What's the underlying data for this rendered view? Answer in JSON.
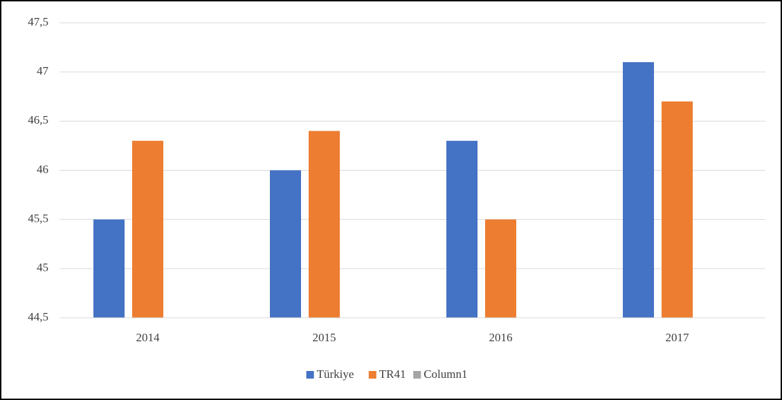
{
  "chart_data": {
    "type": "bar",
    "categories": [
      "2014",
      "2015",
      "2016",
      "2017"
    ],
    "series": [
      {
        "name": "Türkiye",
        "color": "#4472c4",
        "values": [
          45.5,
          46.0,
          46.3,
          47.1
        ]
      },
      {
        "name": "TR41",
        "color": "#ed7d31",
        "values": [
          46.3,
          46.4,
          45.5,
          46.7
        ]
      },
      {
        "name": "Column1",
        "color": "#a5a5a5",
        "values": [
          null,
          null,
          null,
          null
        ]
      }
    ],
    "ylim": [
      44.5,
      47.5
    ],
    "yticks": [
      {
        "value": 44.5,
        "label": "44,5"
      },
      45,
      {
        "value": 45.5,
        "label": "45,5"
      },
      46,
      {
        "value": 46.5,
        "label": "46,5"
      },
      47,
      {
        "value": 47.5,
        "label": "47,5"
      }
    ],
    "grid": true,
    "legend": "bottom"
  }
}
